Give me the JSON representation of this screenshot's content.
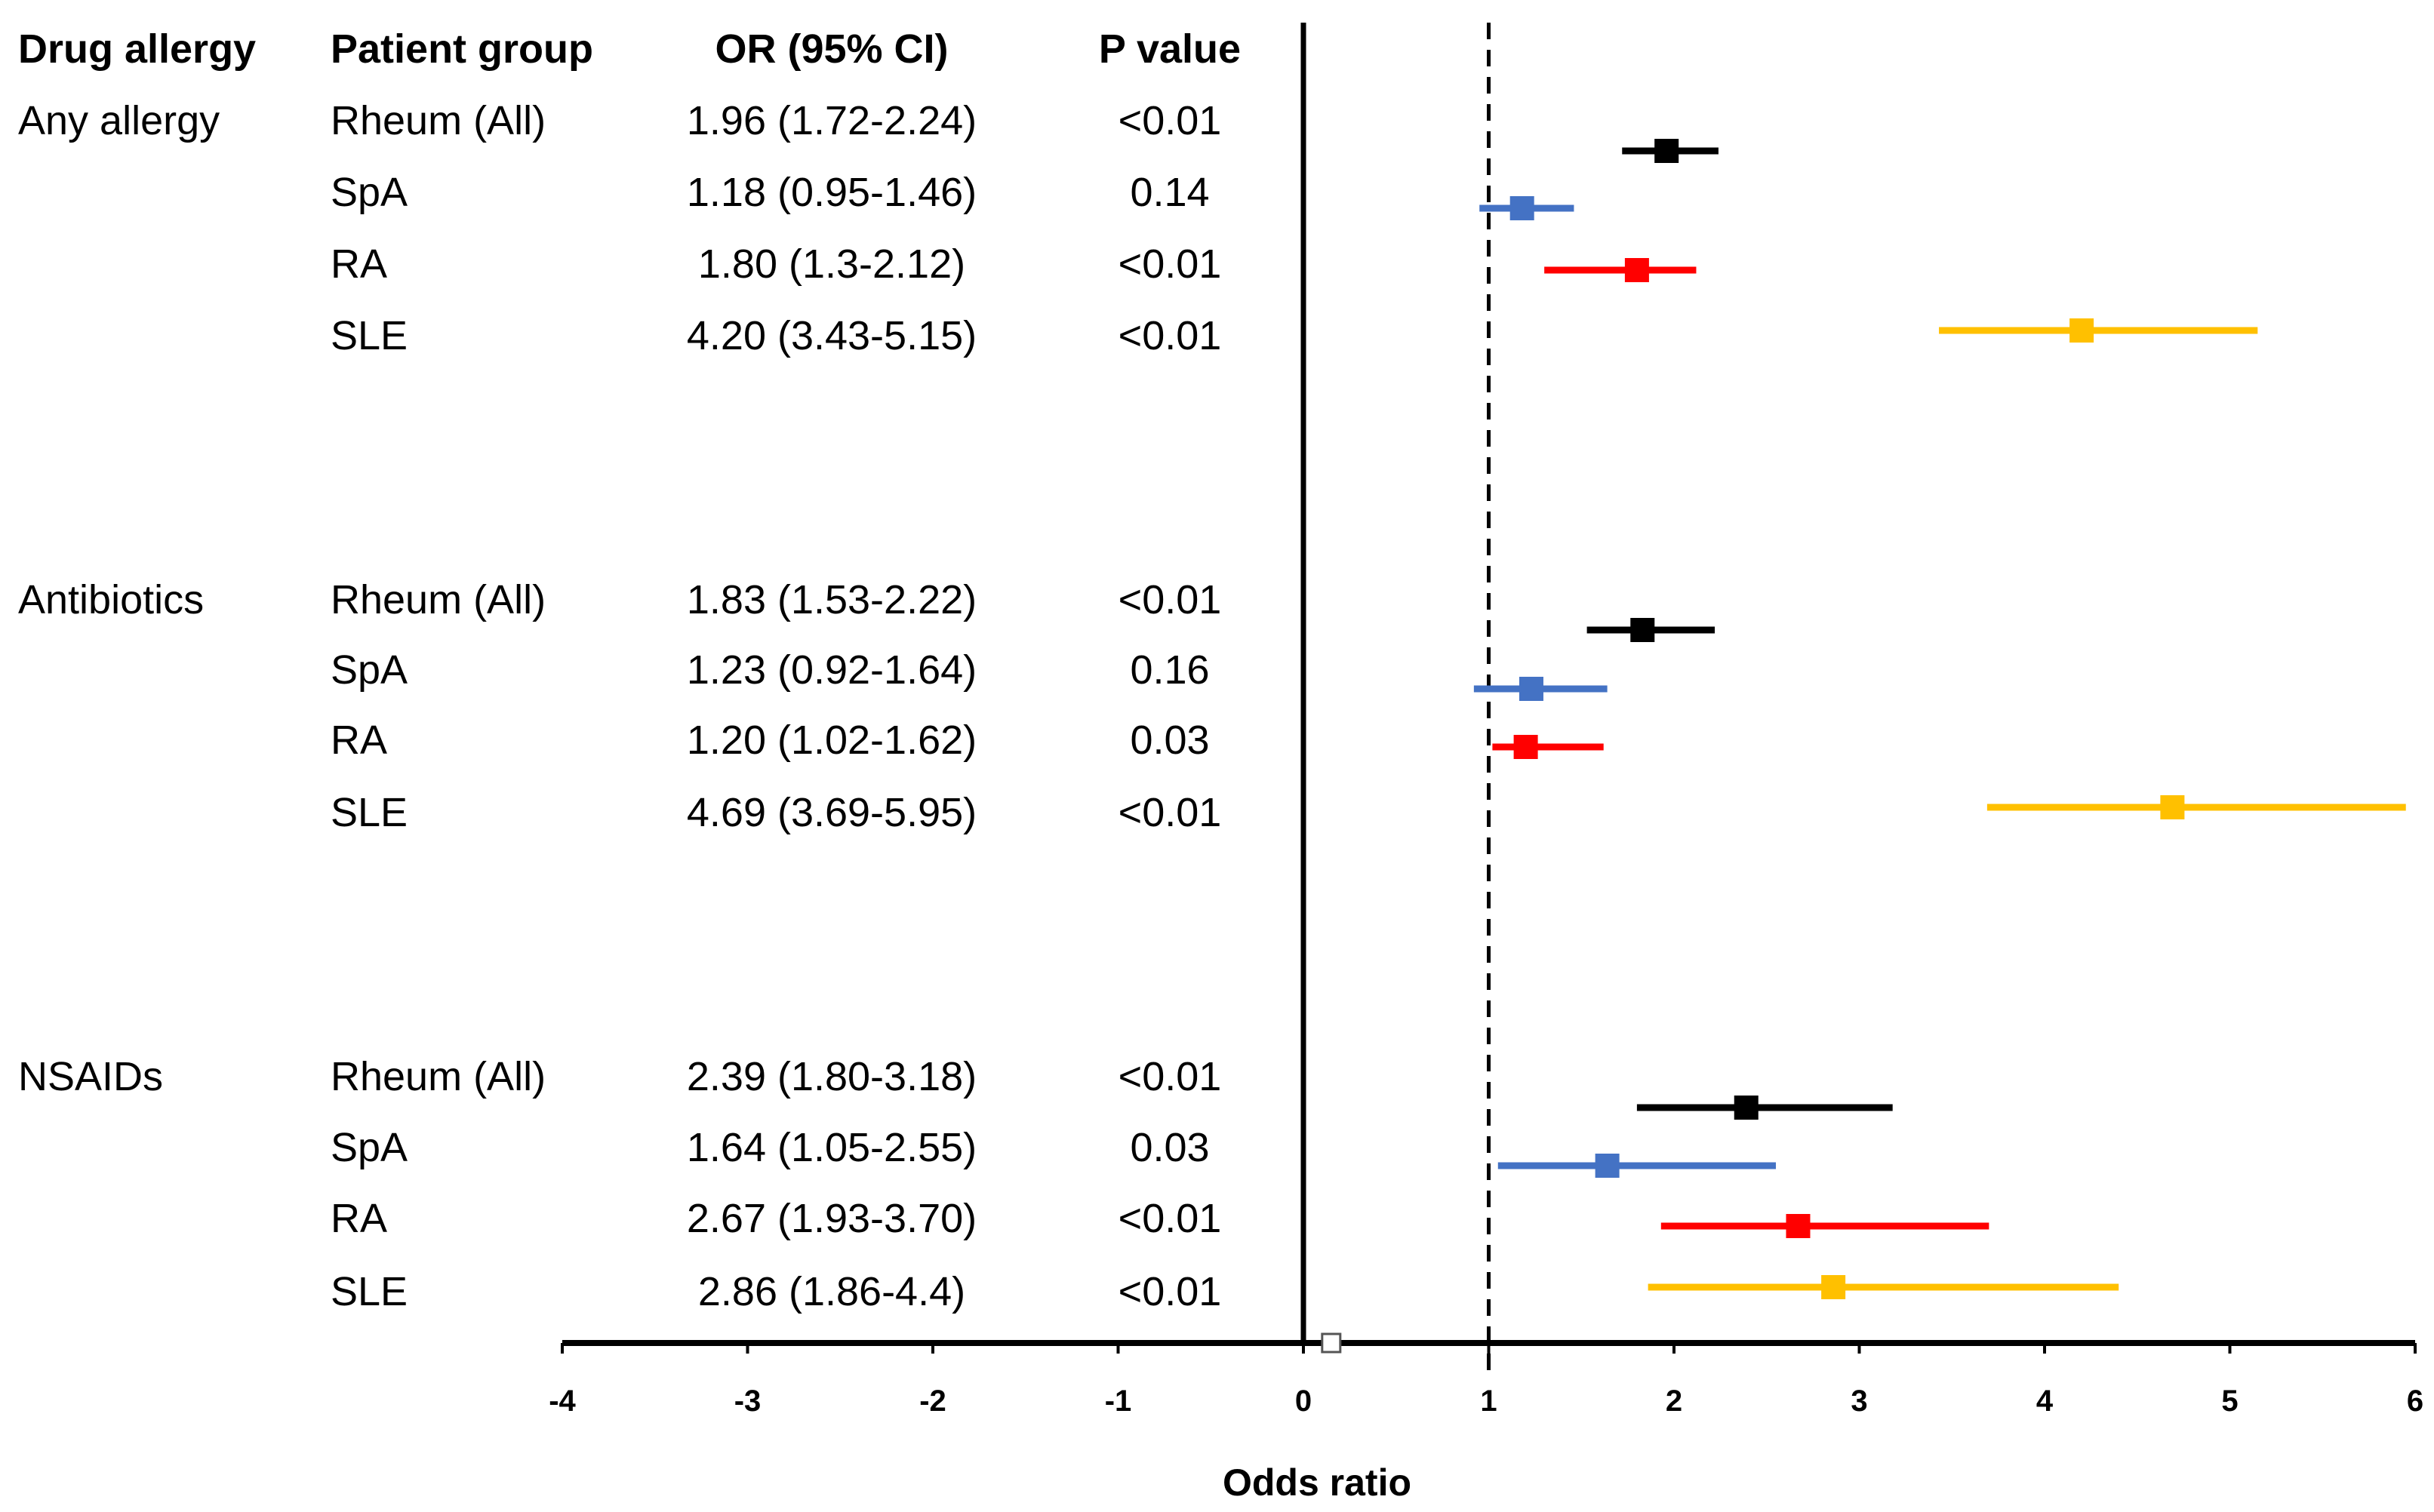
{
  "headers": {
    "drug_allergy": "Drug allergy",
    "patient_group": "Patient group",
    "or_ci": "OR (95% CI)",
    "p_value": "P value"
  },
  "groups": [
    {
      "category": "Any allergy",
      "rows": [
        {
          "group": "Rheum (All)",
          "or_text": "1.96 (1.72-2.24)",
          "p": "<0.01"
        },
        {
          "group": "SpA",
          "or_text": "1.18 (0.95-1.46)",
          "p": "0.14"
        },
        {
          "group": "RA",
          "or_text": "1.80 (1.3-2.12)",
          "p": "<0.01"
        },
        {
          "group": "SLE",
          "or_text": "4.20 (3.43-5.15)",
          "p": "<0.01"
        }
      ]
    },
    {
      "category": "Antibiotics",
      "rows": [
        {
          "group": "Rheum (All)",
          "or_text": "1.83 (1.53-2.22)",
          "p": "<0.01"
        },
        {
          "group": "SpA",
          "or_text": "1.23 (0.92-1.64)",
          "p": "0.16"
        },
        {
          "group": "RA",
          "or_text": "1.20 (1.02-1.62)",
          "p": "0.03"
        },
        {
          "group": "SLE",
          "or_text": "4.69 (3.69-5.95)",
          "p": "<0.01"
        }
      ]
    },
    {
      "category": "NSAIDs",
      "rows": [
        {
          "group": "Rheum (All)",
          "or_text": "2.39 (1.80-3.18)",
          "p": "<0.01"
        },
        {
          "group": "SpA",
          "or_text": "1.64 (1.05-2.55)",
          "p": "0.03"
        },
        {
          "group": "RA",
          "or_text": "2.67 (1.93-3.70)",
          "p": "<0.01"
        },
        {
          "group": "SLE",
          "or_text": "2.86 (1.86-4.4)",
          "p": "<0.01"
        }
      ]
    }
  ],
  "colors": {
    "Rheum (All)": "#000000",
    "SpA": "#4472c4",
    "RA": "#ff0000",
    "SLE": "#ffc000"
  },
  "chart_data": {
    "type": "forest",
    "xlabel": "Odds ratio",
    "xlim": [
      -4,
      6
    ],
    "xticks": [
      -4,
      -3,
      -2,
      -1,
      0,
      1,
      2,
      3,
      4,
      5,
      6
    ],
    "reference_line": 1,
    "series": [
      {
        "category": "Any allergy",
        "group": "Rheum (All)",
        "or": 1.96,
        "lo": 1.72,
        "hi": 2.24
      },
      {
        "category": "Any allergy",
        "group": "SpA",
        "or": 1.18,
        "lo": 0.95,
        "hi": 1.46
      },
      {
        "category": "Any allergy",
        "group": "RA",
        "or": 1.8,
        "lo": 1.3,
        "hi": 2.12
      },
      {
        "category": "Any allergy",
        "group": "SLE",
        "or": 4.2,
        "lo": 3.43,
        "hi": 5.15
      },
      {
        "category": "Antibiotics",
        "group": "Rheum (All)",
        "or": 1.83,
        "lo": 1.53,
        "hi": 2.22
      },
      {
        "category": "Antibiotics",
        "group": "SpA",
        "or": 1.23,
        "lo": 0.92,
        "hi": 1.64
      },
      {
        "category": "Antibiotics",
        "group": "RA",
        "or": 1.2,
        "lo": 1.02,
        "hi": 1.62
      },
      {
        "category": "Antibiotics",
        "group": "SLE",
        "or": 4.69,
        "lo": 3.69,
        "hi": 5.95
      },
      {
        "category": "NSAIDs",
        "group": "Rheum (All)",
        "or": 2.39,
        "lo": 1.8,
        "hi": 3.18
      },
      {
        "category": "NSAIDs",
        "group": "SpA",
        "or": 1.64,
        "lo": 1.05,
        "hi": 2.55
      },
      {
        "category": "NSAIDs",
        "group": "RA",
        "or": 2.67,
        "lo": 1.93,
        "hi": 3.7
      },
      {
        "category": "NSAIDs",
        "group": "SLE",
        "or": 2.86,
        "lo": 1.86,
        "hi": 4.4
      }
    ]
  }
}
